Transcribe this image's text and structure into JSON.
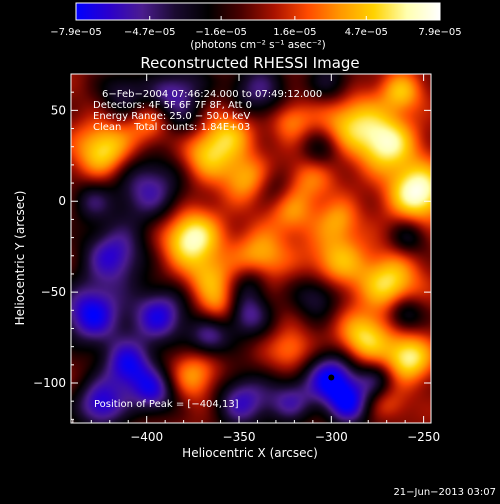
{
  "colorbar": {
    "tick_labels": [
      "−7.9e−05",
      "−4.7e−05",
      "−1.6e−05",
      "1.6e−05",
      "4.7e−05",
      "7.9e−05"
    ],
    "tick_values": [
      -7.9e-05,
      -4.7e-05,
      -1.6e-05,
      1.6e-05,
      4.7e-05,
      7.9e-05
    ],
    "range": [
      -7.9e-05,
      7.9e-05
    ],
    "units_label": "(photons cm⁻² s⁻¹ asec⁻²)",
    "colors": [
      "#0000ff",
      "#2b00cc",
      "#4b1c8f",
      "#1a0a30",
      "#000000",
      "#4a0000",
      "#aa1200",
      "#ff4a00",
      "#ff9800",
      "#ffd200",
      "#ffffb0",
      "#ffffff"
    ]
  },
  "chart_data": {
    "type": "heatmap",
    "title": "Reconstructed RHESSI Image",
    "xlabel": "Heliocentric X (arcsec)",
    "ylabel": "Heliocentric Y (arcsec)",
    "xlim": [
      -441,
      -246
    ],
    "ylim": [
      -122,
      70
    ],
    "x_ticks": [
      -400,
      -350,
      -300,
      -250
    ],
    "x_tick_labels": [
      "−400",
      "−350",
      "−300",
      "−250"
    ],
    "y_ticks": [
      -100,
      -50,
      0,
      50
    ],
    "y_tick_labels": [
      "−100",
      "−50",
      "0",
      "50"
    ],
    "annotations": [
      "6−Feb−2004 07:46:24.000 to 07:49:12.000",
      "Detectors: 4F 5F 6F 7F 8F, Att 0",
      "Energy Range: 25.0 − 50.0 keV",
      "Clean    Total counts: 1.84E+03"
    ],
    "peak_label": "Position of Peak = [−404,13]",
    "peak_position": [
      -404,
      13
    ],
    "marked_point": [
      -300,
      -97
    ],
    "footer_date": "21−Jun−2013 03:07",
    "sources": [
      {
        "x": -423,
        "y": 28,
        "s": 11,
        "a": 0.75
      },
      {
        "x": -398,
        "y": 43,
        "s": 9,
        "a": 0.45
      },
      {
        "x": -390,
        "y": 58,
        "s": 8,
        "a": -0.45
      },
      {
        "x": -367,
        "y": 27,
        "s": 11,
        "a": 0.65
      },
      {
        "x": -346,
        "y": 12,
        "s": 9,
        "a": 0.5
      },
      {
        "x": -353,
        "y": 40,
        "s": 10,
        "a": 0.45
      },
      {
        "x": -322,
        "y": 45,
        "s": 8,
        "a": 0.45
      },
      {
        "x": -312,
        "y": 12,
        "s": 10,
        "a": 0.4
      },
      {
        "x": -290,
        "y": 44,
        "s": 12,
        "a": 0.6
      },
      {
        "x": -270,
        "y": 32,
        "s": 11,
        "a": 0.8
      },
      {
        "x": -262,
        "y": 60,
        "s": 8,
        "a": 0.55
      },
      {
        "x": -253,
        "y": 5,
        "s": 11,
        "a": 0.95
      },
      {
        "x": -376,
        "y": -20,
        "s": 11,
        "a": 0.9
      },
      {
        "x": -366,
        "y": -42,
        "s": 9,
        "a": 0.45
      },
      {
        "x": -338,
        "y": -30,
        "s": 10,
        "a": 0.55
      },
      {
        "x": -322,
        "y": -7,
        "s": 9,
        "a": 0.4
      },
      {
        "x": -297,
        "y": -33,
        "s": 12,
        "a": 0.55
      },
      {
        "x": -268,
        "y": -45,
        "s": 11,
        "a": 0.7
      },
      {
        "x": -282,
        "y": -75,
        "s": 10,
        "a": 0.7
      },
      {
        "x": -258,
        "y": -86,
        "s": 9,
        "a": 0.8
      },
      {
        "x": -296,
        "y": -10,
        "s": 8,
        "a": 0.4
      },
      {
        "x": -374,
        "y": -96,
        "s": 10,
        "a": 0.5
      },
      {
        "x": -360,
        "y": -58,
        "s": 8,
        "a": 0.45
      },
      {
        "x": -322,
        "y": -82,
        "s": 8,
        "a": 0.4
      },
      {
        "x": -270,
        "y": -115,
        "s": 8,
        "a": 0.45
      },
      {
        "x": -412,
        "y": 59,
        "s": 10,
        "a": -0.5
      },
      {
        "x": -378,
        "y": 65,
        "s": 9,
        "a": -0.4
      },
      {
        "x": -380,
        "y": 44,
        "s": 10,
        "a": -0.4
      },
      {
        "x": -340,
        "y": 60,
        "s": 12,
        "a": -0.6
      },
      {
        "x": -300,
        "y": 65,
        "s": 9,
        "a": -0.45
      },
      {
        "x": -306,
        "y": 28,
        "s": 8,
        "a": -0.4
      },
      {
        "x": -399,
        "y": 7,
        "s": 14,
        "a": -0.7
      },
      {
        "x": -330,
        "y": 8,
        "s": 8,
        "a": -0.3
      },
      {
        "x": -418,
        "y": -30,
        "s": 12,
        "a": -0.8
      },
      {
        "x": -430,
        "y": -62,
        "s": 12,
        "a": -0.95
      },
      {
        "x": -410,
        "y": -90,
        "s": 10,
        "a": -0.85
      },
      {
        "x": -393,
        "y": -63,
        "s": 11,
        "a": -0.85
      },
      {
        "x": -425,
        "y": -112,
        "s": 10,
        "a": -0.85
      },
      {
        "x": -396,
        "y": -105,
        "s": 9,
        "a": -0.75
      },
      {
        "x": -346,
        "y": -62,
        "s": 9,
        "a": -0.7
      },
      {
        "x": -366,
        "y": -75,
        "s": 8,
        "a": -0.65
      },
      {
        "x": -348,
        "y": -110,
        "s": 11,
        "a": -0.75
      },
      {
        "x": -322,
        "y": -110,
        "s": 9,
        "a": -0.6
      },
      {
        "x": -308,
        "y": -52,
        "s": 9,
        "a": -0.55
      },
      {
        "x": -300,
        "y": -97,
        "s": 10,
        "a": -0.95
      },
      {
        "x": -290,
        "y": -112,
        "s": 9,
        "a": -0.8
      },
      {
        "x": -276,
        "y": -98,
        "s": 7,
        "a": -0.4
      },
      {
        "x": -260,
        "y": -62,
        "s": 7,
        "a": -0.55
      },
      {
        "x": -343,
        "y": -44,
        "s": 7,
        "a": -0.35
      },
      {
        "x": -258,
        "y": -20,
        "s": 7,
        "a": -0.4
      },
      {
        "x": -270,
        "y": -120,
        "s": 7,
        "a": -0.3
      },
      {
        "x": -430,
        "y": 0,
        "s": 8,
        "a": -0.45
      }
    ]
  }
}
